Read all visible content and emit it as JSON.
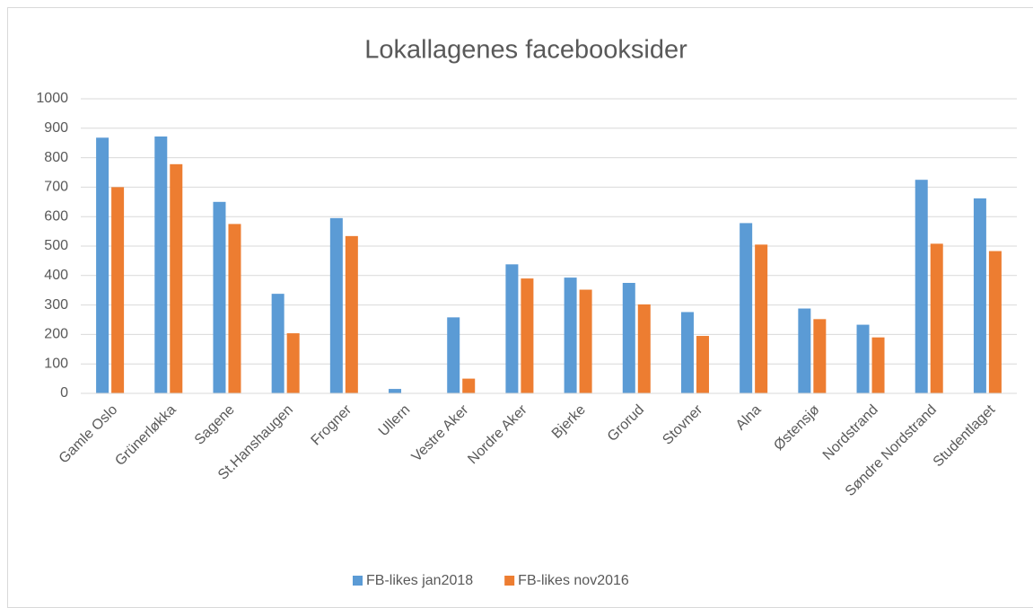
{
  "chart_data": {
    "type": "bar",
    "title": "Lokallagenes facebooksider",
    "categories": [
      "Gamle Oslo",
      "Grünerløkka",
      "Sagene",
      "St.Hanshaugen",
      "Frogner",
      "Ullern",
      "Vestre Aker",
      "Nordre Aker",
      "Bjerke",
      "Grorud",
      "Stovner",
      "Alna",
      "Østensjø",
      "Nordstrand",
      "Søndre Nordstrand",
      "Studentlaget"
    ],
    "series": [
      {
        "name": "FB-likes jan2018",
        "color": "#5b9bd5",
        "values": [
          868,
          872,
          650,
          338,
          595,
          15,
          258,
          438,
          393,
          375,
          276,
          578,
          288,
          233,
          725,
          662
        ]
      },
      {
        "name": "FB-likes nov2016",
        "color": "#ed7d31",
        "values": [
          700,
          778,
          575,
          204,
          534,
          0,
          50,
          390,
          352,
          302,
          195,
          505,
          252,
          190,
          508,
          483
        ]
      }
    ],
    "ylim": [
      0,
      1000
    ],
    "yticks": [
      0,
      100,
      200,
      300,
      400,
      500,
      600,
      700,
      800,
      900,
      1000
    ],
    "grid": true,
    "legend": "bottom"
  }
}
